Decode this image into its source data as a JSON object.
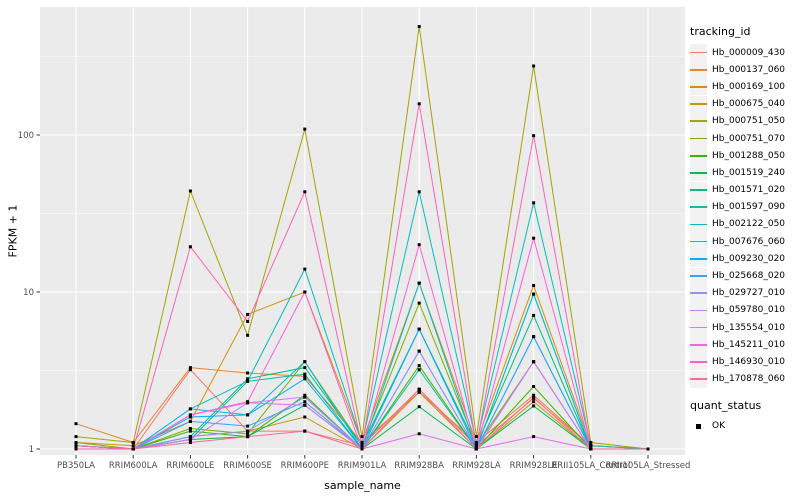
{
  "chart_data": {
    "type": "line",
    "xlabel": "sample_name",
    "ylabel": "FPKM + 1",
    "y_scale": "log10",
    "y_ticks": [
      "1",
      "10",
      "100"
    ],
    "y_tick_values": [
      1,
      10,
      100
    ],
    "y_minor_values": [
      3.1623,
      31.623,
      316.23
    ],
    "ylim": [
      0.92,
      660
    ],
    "grid": true,
    "legend_position": "right",
    "legend_title": "tracking_id",
    "legend2": {
      "title": "quant_status",
      "entries": [
        "OK"
      ]
    },
    "point_shape": "filled-square",
    "point_color": "#000000",
    "style": {
      "panel_bg": "#EBEBEB",
      "grid_color": "#FFFFFF",
      "axis_text_color": "#4D4D4D",
      "tick_color": "#333333",
      "legend_key_bg": "#F2F2F2"
    },
    "categories": [
      "PB350LA",
      "RRIM600LA",
      "RRIM600LE",
      "RRIM600SE",
      "RRIM600PE",
      "RRIM901LA",
      "RRIM928BA",
      "RRIM928LA",
      "RRIM928LE",
      "RRII105LA_Control",
      "RRII105LA_Stressed"
    ],
    "series": [
      {
        "name": "Hb_000009_430",
        "color": "#F8766D",
        "values": [
          1.05,
          1.0,
          3.2,
          1.3,
          1.3,
          1.05,
          2.4,
          1.05,
          2.1,
          1.05,
          1.0
        ]
      },
      {
        "name": "Hb_000137_060",
        "color": "#EA8331",
        "values": [
          1.45,
          1.1,
          3.3,
          3.05,
          2.9,
          1.1,
          2.3,
          1.1,
          2.2,
          1.05,
          1.0
        ]
      },
      {
        "name": "Hb_000169_100",
        "color": "#D89000",
        "values": [
          1.1,
          1.05,
          1.5,
          7.2,
          10.0,
          1.1,
          11.4,
          1.1,
          11.0,
          1.05,
          1.0
        ]
      },
      {
        "name": "Hb_000675_040",
        "color": "#C09B00",
        "values": [
          1.05,
          1.0,
          1.2,
          1.3,
          1.6,
          1.0,
          2.3,
          1.0,
          2.0,
          1.0,
          1.0
        ]
      },
      {
        "name": "Hb_000751_050",
        "color": "#A3A500",
        "values": [
          1.2,
          1.1,
          44.0,
          5.3,
          109.0,
          1.2,
          490.0,
          1.2,
          275.0,
          1.1,
          1.0
        ]
      },
      {
        "name": "Hb_000751_070",
        "color": "#7CAE00",
        "values": [
          1.1,
          1.0,
          1.35,
          1.25,
          3.6,
          1.05,
          8.5,
          1.05,
          3.6,
          1.0,
          1.0
        ]
      },
      {
        "name": "Hb_001288_050",
        "color": "#39B600",
        "values": [
          1.05,
          1.0,
          1.3,
          1.2,
          2.2,
          1.0,
          3.4,
          1.0,
          2.5,
          1.0,
          1.0
        ]
      },
      {
        "name": "Hb_001519_240",
        "color": "#00BB4E",
        "values": [
          1.0,
          1.0,
          1.15,
          1.2,
          1.9,
          1.0,
          1.86,
          1.0,
          1.88,
          1.0,
          1.0
        ]
      },
      {
        "name": "Hb_001571_020",
        "color": "#00BF7D",
        "values": [
          1.05,
          1.0,
          1.2,
          2.8,
          3.3,
          1.05,
          5.8,
          1.05,
          7.1,
          1.0,
          1.0
        ]
      },
      {
        "name": "Hb_001597_090",
        "color": "#00C1A3",
        "values": [
          1.0,
          1.0,
          1.15,
          2.7,
          3.0,
          1.0,
          3.2,
          1.0,
          9.7,
          1.0,
          1.0
        ]
      },
      {
        "name": "Hb_002122_050",
        "color": "#00BFC4",
        "values": [
          1.05,
          1.0,
          1.8,
          2.7,
          14.0,
          1.1,
          43.5,
          1.1,
          37.0,
          1.05,
          1.0
        ]
      },
      {
        "name": "Hb_007676_060",
        "color": "#00BAE0",
        "values": [
          1.0,
          1.0,
          1.8,
          1.65,
          3.6,
          1.0,
          11.4,
          1.0,
          9.7,
          1.0,
          1.0
        ]
      },
      {
        "name": "Hb_009230_020",
        "color": "#00B0F6",
        "values": [
          1.0,
          1.0,
          1.6,
          1.65,
          2.8,
          1.0,
          5.8,
          1.0,
          5.2,
          1.0,
          1.0
        ]
      },
      {
        "name": "Hb_025668_020",
        "color": "#35A2FF",
        "values": [
          1.0,
          1.0,
          1.5,
          1.4,
          2.0,
          1.0,
          4.2,
          1.0,
          5.2,
          1.0,
          1.0
        ]
      },
      {
        "name": "Hb_029727_010",
        "color": "#9590FF",
        "values": [
          1.0,
          1.0,
          1.2,
          1.3,
          2.14,
          1.0,
          4.2,
          1.0,
          3.6,
          1.0,
          1.0
        ]
      },
      {
        "name": "Hb_059780_010",
        "color": "#C77CFF",
        "values": [
          1.0,
          1.0,
          1.15,
          1.97,
          2.14,
          1.0,
          2.4,
          1.0,
          3.6,
          1.0,
          1.0
        ]
      },
      {
        "name": "Hb_135554_010",
        "color": "#E76BF3",
        "values": [
          1.0,
          1.0,
          1.65,
          1.97,
          1.9,
          1.0,
          1.25,
          1.0,
          1.2,
          1.0,
          1.0
        ]
      },
      {
        "name": "Hb_145211_010",
        "color": "#FA62DB",
        "values": [
          1.0,
          1.0,
          1.65,
          2.0,
          10.0,
          1.0,
          20.0,
          1.0,
          22.0,
          1.0,
          1.0
        ]
      },
      {
        "name": "Hb_146930_010",
        "color": "#FF62BC",
        "values": [
          1.0,
          1.0,
          19.4,
          6.5,
          43.5,
          1.05,
          158.0,
          1.05,
          99.0,
          1.0,
          1.0
        ]
      },
      {
        "name": "Hb_170878_060",
        "color": "#FF6A98",
        "values": [
          1.05,
          1.0,
          1.1,
          1.2,
          1.3,
          1.0,
          2.4,
          1.0,
          2.13,
          1.0,
          1.0
        ]
      }
    ]
  }
}
